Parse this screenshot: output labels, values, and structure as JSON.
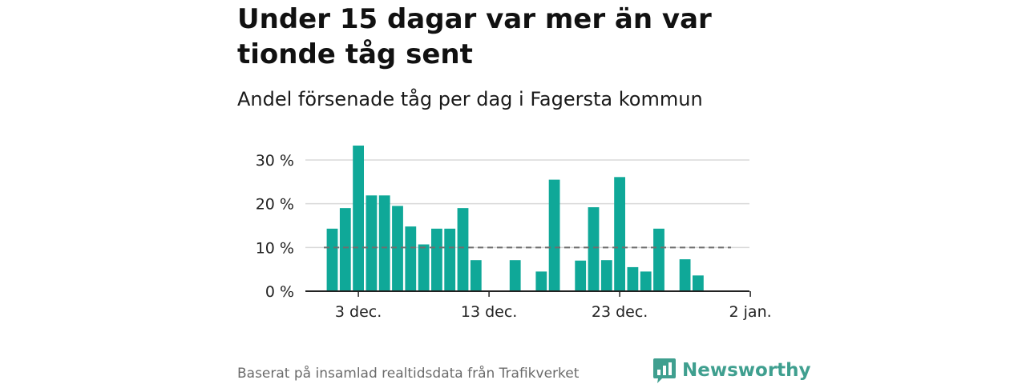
{
  "title": "Under 15 dagar var mer än var tionde tåg sent",
  "subtitle": "Andel försenade tåg per dag i Fagersta kommun",
  "footer": "Baserat på insamlad realtidsdata från Trafikverket",
  "brand": "Newsworthy",
  "colors": {
    "bar": "#0fa898",
    "grid": "#d9d9d9",
    "reference": "#6e6e6e",
    "axis": "#222222",
    "brand": "#3f9f8f"
  },
  "chart_data": {
    "type": "bar",
    "x_unit": "date",
    "ylim": [
      0,
      32
    ],
    "yticks": [
      0,
      10,
      20,
      30
    ],
    "ytick_labels": [
      "0 %",
      "10 %",
      "20 %",
      "30 %"
    ],
    "xtick_labels": [
      "3 dec.",
      "13 dec.",
      "23 dec.",
      "2 jan."
    ],
    "xtick_dates": [
      "2022-12-03",
      "2022-12-13",
      "2022-12-23",
      "2023-01-02"
    ],
    "reference_line": 10,
    "grid": true,
    "points": [
      {
        "date": "2022-12-01",
        "value": 14.3
      },
      {
        "date": "2022-12-02",
        "value": 19.0
      },
      {
        "date": "2022-12-03",
        "value": 33.3
      },
      {
        "date": "2022-12-04",
        "value": 21.9
      },
      {
        "date": "2022-12-05",
        "value": 21.9
      },
      {
        "date": "2022-12-06",
        "value": 19.5
      },
      {
        "date": "2022-12-07",
        "value": 14.8
      },
      {
        "date": "2022-12-08",
        "value": 10.7
      },
      {
        "date": "2022-12-09",
        "value": 14.3
      },
      {
        "date": "2022-12-10",
        "value": 14.3
      },
      {
        "date": "2022-12-11",
        "value": 19.0
      },
      {
        "date": "2022-12-12",
        "value": 7.1
      },
      {
        "date": "2022-12-13",
        "value": 0
      },
      {
        "date": "2022-12-14",
        "value": 0
      },
      {
        "date": "2022-12-15",
        "value": 7.1
      },
      {
        "date": "2022-12-16",
        "value": 0
      },
      {
        "date": "2022-12-17",
        "value": 4.5
      },
      {
        "date": "2022-12-18",
        "value": 25.5
      },
      {
        "date": "2022-12-19",
        "value": 0
      },
      {
        "date": "2022-12-20",
        "value": 7.0
      },
      {
        "date": "2022-12-21",
        "value": 19.2
      },
      {
        "date": "2022-12-22",
        "value": 7.1
      },
      {
        "date": "2022-12-23",
        "value": 26.1
      },
      {
        "date": "2022-12-24",
        "value": 5.5
      },
      {
        "date": "2022-12-25",
        "value": 4.5
      },
      {
        "date": "2022-12-26",
        "value": 14.3
      },
      {
        "date": "2022-12-27",
        "value": 0
      },
      {
        "date": "2022-12-28",
        "value": 7.3
      },
      {
        "date": "2022-12-29",
        "value": 3.6
      }
    ]
  }
}
